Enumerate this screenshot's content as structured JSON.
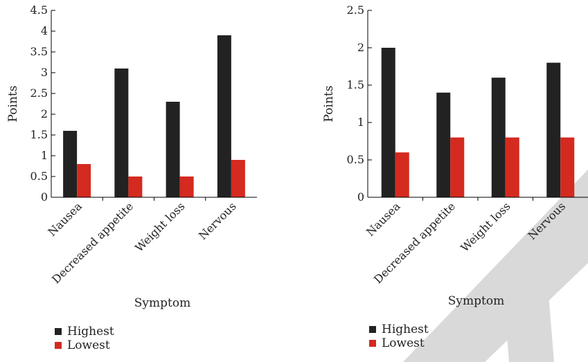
{
  "colors": {
    "highest": "#222222",
    "lowest": "#d42a1f",
    "axis": "#000000",
    "watermark": "#d9d9d9"
  },
  "chart_data": [
    {
      "type": "bar",
      "categories": [
        "Nausea",
        "Decreased appetite",
        "Weight loss",
        "Nervous"
      ],
      "series": [
        {
          "name": "Highest",
          "values": [
            1.6,
            3.1,
            2.3,
            3.9
          ]
        },
        {
          "name": "Lowest",
          "values": [
            0.8,
            0.5,
            0.5,
            0.9
          ]
        }
      ],
      "ylim": [
        0,
        4.5
      ],
      "yticks": [
        "0",
        "0.5",
        "1",
        "1.5",
        "2",
        "2.5",
        "3",
        "3.5",
        "4",
        "4.5"
      ],
      "xlabel": "Symptom",
      "ylabel": "Points",
      "legend_position": "bottom-left",
      "grid": false
    },
    {
      "type": "bar",
      "categories": [
        "Nausea",
        "Decreased appetite",
        "Weight loss",
        "Nervous"
      ],
      "series": [
        {
          "name": "Highest",
          "values": [
            2.0,
            1.4,
            1.6,
            1.8
          ]
        },
        {
          "name": "Lowest",
          "values": [
            0.6,
            0.8,
            0.8,
            0.8
          ]
        }
      ],
      "ylim": [
        0,
        2.5
      ],
      "yticks": [
        "0",
        "0.5",
        "1",
        "1.5",
        "2",
        "2.5"
      ],
      "xlabel": "Symptom",
      "ylabel": "Points",
      "legend_position": "bottom-left",
      "grid": false
    }
  ]
}
